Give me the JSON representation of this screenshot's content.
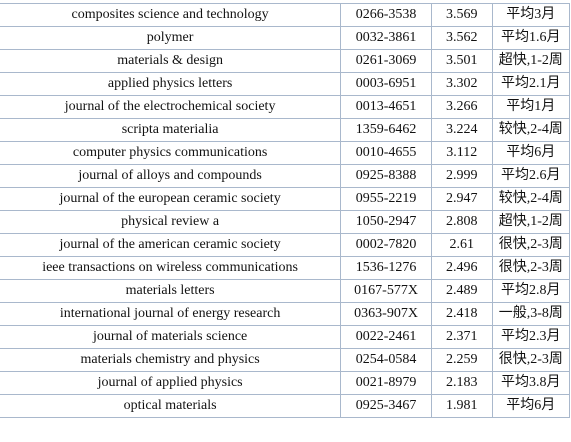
{
  "table": {
    "rows": [
      [
        "composites science and technology",
        "0266-3538",
        "3.569",
        "平均3月"
      ],
      [
        "polymer",
        "0032-3861",
        "3.562",
        "平均1.6月"
      ],
      [
        "materials & design",
        "0261-3069",
        "3.501",
        "超快,1-2周"
      ],
      [
        "applied physics letters",
        "0003-6951",
        "3.302",
        "平均2.1月"
      ],
      [
        "journal of the electrochemical society",
        "0013-4651",
        "3.266",
        "平均1月"
      ],
      [
        "scripta materialia",
        "1359-6462",
        "3.224",
        "较快,2-4周"
      ],
      [
        "computer physics communications",
        "0010-4655",
        "3.112",
        "平均6月"
      ],
      [
        "journal of alloys and compounds",
        "0925-8388",
        "2.999",
        "平均2.6月"
      ],
      [
        "journal of the european ceramic society",
        "0955-2219",
        "2.947",
        "较快,2-4周"
      ],
      [
        "physical review a",
        "1050-2947",
        "2.808",
        "超快,1-2周"
      ],
      [
        "journal of the american ceramic society",
        "0002-7820",
        "2.61",
        "很快,2-3周"
      ],
      [
        "ieee transactions on wireless communications",
        "1536-1276",
        "2.496",
        "很快,2-3周"
      ],
      [
        "materials letters",
        "0167-577X",
        "2.489",
        "平均2.8月"
      ],
      [
        "international journal of energy research",
        "0363-907X",
        "2.418",
        "一般,3-8周"
      ],
      [
        "journal of materials science",
        "0022-2461",
        "2.371",
        "平均2.3月"
      ],
      [
        "materials chemistry and physics",
        "0254-0584",
        "2.259",
        "很快,2-3周"
      ],
      [
        "journal of applied physics",
        "0021-8979",
        "2.183",
        "平均3.8月"
      ],
      [
        "optical materials",
        "0925-3467",
        "1.981",
        "平均6月"
      ]
    ]
  }
}
